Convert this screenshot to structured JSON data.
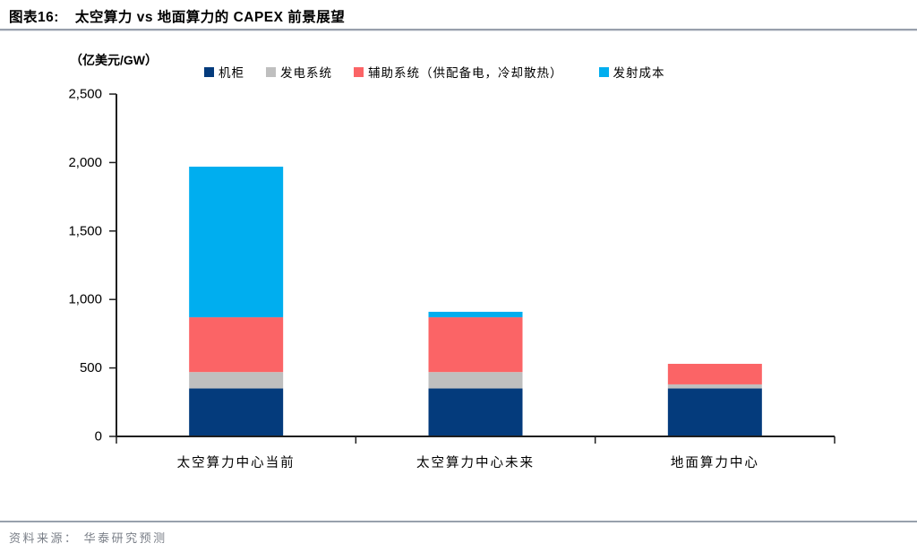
{
  "header": {
    "tag": "图表16:",
    "title": "太空算力 vs 地面算力的 CAPEX 前景展望"
  },
  "footer": {
    "source": "资料来源： 华泰研究预测"
  },
  "chart_data": {
    "type": "bar",
    "stacked": true,
    "title": "太空算力 vs 地面算力的 CAPEX 前景展望",
    "unit_label": "（亿美元/GW）",
    "ylabel": "亿美元/GW",
    "categories": [
      "太空算力中心当前",
      "太空算力中心未来",
      "地面算力中心"
    ],
    "series": [
      {
        "name": "机柜",
        "color": "#043B7C",
        "values": [
          350,
          350,
          350
        ]
      },
      {
        "name": "发电系统",
        "color": "#BFBFBF",
        "values": [
          120,
          120,
          30
        ]
      },
      {
        "name": "辅助系统（供配备电，冷却散热）",
        "color": "#FB6466",
        "values": [
          400,
          400,
          150
        ]
      },
      {
        "name": "发射成本",
        "color": "#00AEEF",
        "values": [
          1100,
          40,
          0
        ]
      }
    ],
    "totals": [
      1970,
      910,
      530
    ],
    "ylim": [
      0,
      2500
    ],
    "yticks": [
      0,
      500,
      1000,
      1500,
      2000,
      2500
    ],
    "ytick_labels": [
      "0",
      "500",
      "1,000",
      "1,500",
      "2,000",
      "2,500"
    ],
    "legend_position": "top",
    "grid": false,
    "axis_color": "#1F1F1F"
  }
}
